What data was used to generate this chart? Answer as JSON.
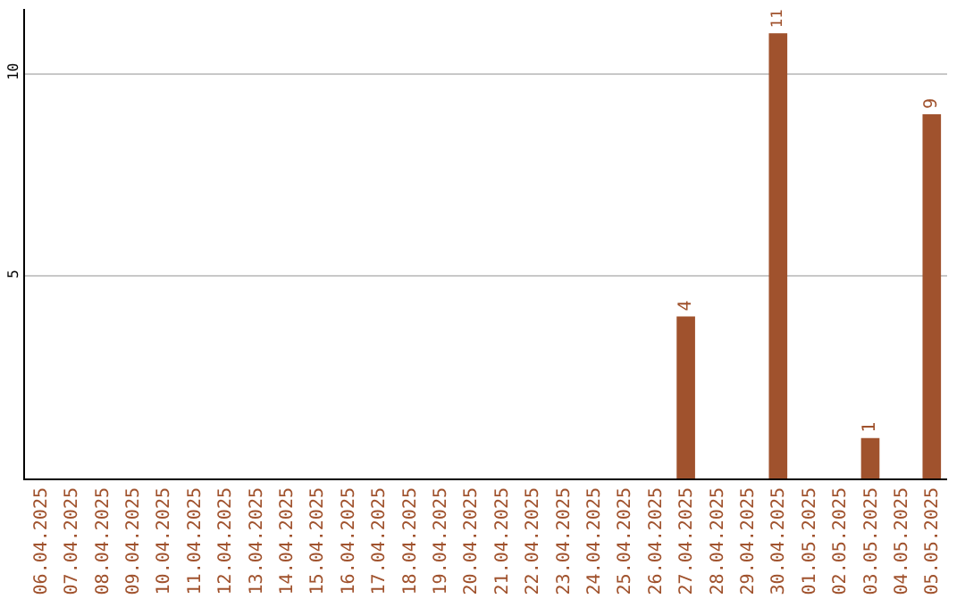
{
  "chart_data": {
    "type": "bar",
    "categories": [
      "06.04.2025",
      "07.04.2025",
      "08.04.2025",
      "09.04.2025",
      "10.04.2025",
      "11.04.2025",
      "12.04.2025",
      "13.04.2025",
      "14.04.2025",
      "15.04.2025",
      "16.04.2025",
      "17.04.2025",
      "18.04.2025",
      "19.04.2025",
      "20.04.2025",
      "21.04.2025",
      "22.04.2025",
      "23.04.2025",
      "24.04.2025",
      "25.04.2025",
      "26.04.2025",
      "27.04.2025",
      "28.04.2025",
      "29.04.2025",
      "30.04.2025",
      "01.05.2025",
      "02.05.2025",
      "03.05.2025",
      "04.05.2025",
      "05.05.2025"
    ],
    "values": [
      0,
      0,
      0,
      0,
      0,
      0,
      0,
      0,
      0,
      0,
      0,
      0,
      0,
      0,
      0,
      0,
      0,
      0,
      0,
      0,
      0,
      4,
      0,
      0,
      11,
      0,
      0,
      1,
      0,
      9
    ],
    "value_labels": [
      null,
      null,
      null,
      null,
      null,
      null,
      null,
      null,
      null,
      null,
      null,
      null,
      null,
      null,
      null,
      null,
      null,
      null,
      null,
      null,
      null,
      "4",
      null,
      null,
      "11",
      null,
      null,
      "1",
      null,
      "9"
    ],
    "color": "#a0522d",
    "ylim": [
      0,
      11.6
    ],
    "yticks": [
      5,
      10
    ],
    "grid": "y",
    "legend": false
  }
}
